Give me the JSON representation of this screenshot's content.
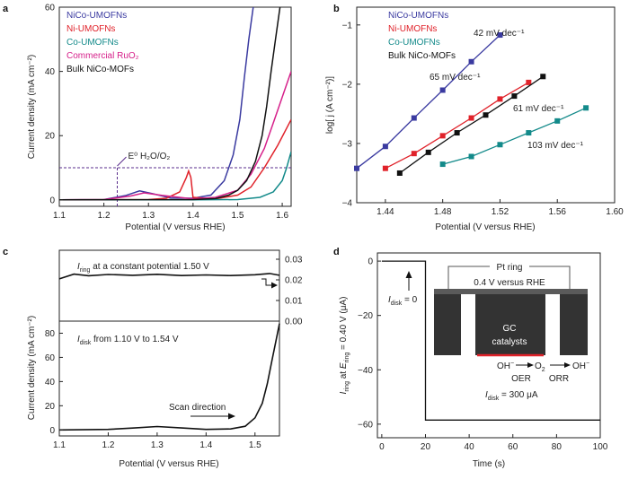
{
  "panels": {
    "a": "a",
    "b": "b",
    "c": "c",
    "d": "d"
  },
  "chart_data": [
    {
      "type": "line",
      "panel": "a",
      "xlabel": "Potential (V versus RHE)",
      "ylabel": "Current density (mA cm⁻²)",
      "xlim": [
        1.1,
        1.62
      ],
      "ylim": [
        -2,
        60
      ],
      "xticks": [
        "1.1",
        "1.2",
        "1.3",
        "1.4",
        "1.5",
        "1.6"
      ],
      "yticks": [
        "0",
        "20",
        "40",
        "60"
      ],
      "legend_position": "top-left",
      "annotation": {
        "text": "E⁰ H₂O/O₂",
        "x": 1.23,
        "y": 10
      },
      "series": [
        {
          "name": "NiCo-UMOFNs",
          "color": "#3a3aa0",
          "x": [
            1.1,
            1.2,
            1.25,
            1.28,
            1.31,
            1.35,
            1.4,
            1.44,
            1.47,
            1.49,
            1.505,
            1.515,
            1.525,
            1.535
          ],
          "y": [
            0,
            0.1,
            1.4,
            2.8,
            1.9,
            0.6,
            0.5,
            1.5,
            6,
            14,
            25,
            38,
            50,
            60
          ]
        },
        {
          "name": "Ni-UMOFNs",
          "color": "#e0222a",
          "x": [
            1.1,
            1.3,
            1.34,
            1.37,
            1.385,
            1.39,
            1.395,
            1.4,
            1.45,
            1.5,
            1.53,
            1.56,
            1.59,
            1.62
          ],
          "y": [
            0,
            0.1,
            0.5,
            2.5,
            7,
            9,
            7,
            0.8,
            0.3,
            1.5,
            4,
            10,
            17,
            25
          ]
        },
        {
          "name": "Co-UMOFNs",
          "color": "#138a8a",
          "x": [
            1.1,
            1.4,
            1.5,
            1.55,
            1.58,
            1.6,
            1.61,
            1.62
          ],
          "y": [
            0,
            0,
            0.1,
            0.8,
            2.5,
            6,
            10,
            15
          ]
        },
        {
          "name": "Commercial RuO₂",
          "color": "#d6208a",
          "x": [
            1.1,
            1.2,
            1.26,
            1.29,
            1.33,
            1.4,
            1.45,
            1.5,
            1.53,
            1.56,
            1.58,
            1.6,
            1.62
          ],
          "y": [
            0,
            0.1,
            1.2,
            2.2,
            1.4,
            0.3,
            0.8,
            3,
            8,
            16,
            24,
            32,
            40
          ]
        },
        {
          "name": "Bulk NiCo-MOFs",
          "color": "#111111",
          "x": [
            1.1,
            1.4,
            1.45,
            1.48,
            1.5,
            1.52,
            1.54,
            1.555,
            1.565,
            1.575,
            1.585,
            1.595
          ],
          "y": [
            0,
            0.1,
            0.4,
            1.5,
            3,
            6,
            12,
            20,
            29,
            40,
            50,
            60
          ]
        }
      ]
    },
    {
      "type": "scatter",
      "panel": "b",
      "xlabel": "Potential (V versus RHE)",
      "ylabel": "log[ j (A cm⁻²)]",
      "xlim": [
        1.42,
        1.6
      ],
      "ylim": [
        -4,
        -0.7
      ],
      "xticks": [
        "1.44",
        "1.48",
        "1.52",
        "1.56",
        "1.60"
      ],
      "yticks": [
        "−4",
        "−3",
        "−2",
        "−1"
      ],
      "legend_position": "top-left",
      "series": [
        {
          "name": "NiCo-UMOFNs",
          "color": "#3a3aa0",
          "slope_label": "42 mV dec⁻¹",
          "x": [
            1.42,
            1.44,
            1.46,
            1.48,
            1.5,
            1.52
          ],
          "y": [
            -3.42,
            -3.05,
            -2.57,
            -2.1,
            -1.62,
            -1.17
          ]
        },
        {
          "name": "Ni-UMOFNs",
          "color": "#e0222a",
          "slope_label": "65 mV dec⁻¹",
          "x": [
            1.44,
            1.46,
            1.48,
            1.5,
            1.52,
            1.54
          ],
          "y": [
            -3.42,
            -3.17,
            -2.87,
            -2.57,
            -2.25,
            -1.97
          ]
        },
        {
          "name": "Co-UMOFNs",
          "color": "#138a8a",
          "slope_label": "103 mV dec⁻¹",
          "x": [
            1.48,
            1.5,
            1.52,
            1.54,
            1.56,
            1.58
          ],
          "y": [
            -3.35,
            -3.22,
            -3.02,
            -2.82,
            -2.62,
            -2.4
          ]
        },
        {
          "name": "Bulk NiCo-MOFs",
          "color": "#111111",
          "slope_label": "61 mV dec⁻¹",
          "x": [
            1.45,
            1.47,
            1.49,
            1.51,
            1.53,
            1.55
          ],
          "y": [
            -3.5,
            -3.15,
            -2.82,
            -2.52,
            -2.2,
            -1.87
          ]
        }
      ]
    },
    {
      "type": "line",
      "panel": "c",
      "xlabel": "Potential (V versus RHE)",
      "ylabel": "Current density (mA cm⁻²)",
      "xlim": [
        1.1,
        1.55
      ],
      "ylim": [
        -5,
        90
      ],
      "xticks": [
        "1.1",
        "1.2",
        "1.3",
        "1.4",
        "1.5"
      ],
      "yticks": [
        "0",
        "20",
        "40",
        "60",
        "80"
      ],
      "right_axis": {
        "ylim": [
          0,
          0.03
        ],
        "yticks": [
          "0.00",
          "0.01",
          "0.02",
          "0.03"
        ]
      },
      "annotations": {
        "ring": "I_ring at a constant potential 1.50 V",
        "disk": "I_disk from 1.10 V to 1.54 V",
        "scan": "Scan direction"
      },
      "series": [
        {
          "name": "I_ring",
          "axis": "right",
          "color": "#111111",
          "x": [
            1.1,
            1.13,
            1.16,
            1.2,
            1.25,
            1.3,
            1.35,
            1.4,
            1.45,
            1.5,
            1.53,
            1.55
          ],
          "y": [
            0.0205,
            0.0228,
            0.022,
            0.0226,
            0.0222,
            0.0227,
            0.0221,
            0.0224,
            0.0221,
            0.0225,
            0.0231,
            0.0222
          ]
        },
        {
          "name": "I_disk",
          "axis": "left",
          "color": "#111111",
          "x": [
            1.1,
            1.2,
            1.25,
            1.3,
            1.35,
            1.4,
            1.45,
            1.48,
            1.5,
            1.515,
            1.525,
            1.535,
            1.545,
            1.55
          ],
          "y": [
            0,
            0.4,
            1.5,
            2.8,
            1.6,
            0.4,
            0.8,
            3,
            10,
            22,
            38,
            58,
            78,
            88
          ]
        }
      ]
    },
    {
      "type": "line",
      "panel": "d",
      "xlabel": "Time (s)",
      "ylabel": "I_ring at E_ring = 0.40 V (μA)",
      "xlim": [
        -2,
        100
      ],
      "ylim": [
        -65,
        3
      ],
      "xticks": [
        "0",
        "20",
        "40",
        "60",
        "80",
        "100"
      ],
      "yticks": [
        "0",
        "−20",
        "−40",
        "−60"
      ],
      "annotations": {
        "disk_zero": "I_disk = 0",
        "disk_300": "I_disk = 300 μA",
        "pt_ring": "Pt ring",
        "ring_potential": "0.4 V versus RHE",
        "gc_1": "GC",
        "gc_2": "catalysts",
        "reaction": "OH⁻ → O₂ → OH⁻",
        "oer": "OER",
        "orr": "ORR"
      },
      "series": [
        {
          "name": "I_ring",
          "color": "#111111",
          "x": [
            0,
            20,
            20,
            100
          ],
          "y": [
            0,
            0,
            -58.5,
            -58.5
          ]
        }
      ]
    }
  ]
}
